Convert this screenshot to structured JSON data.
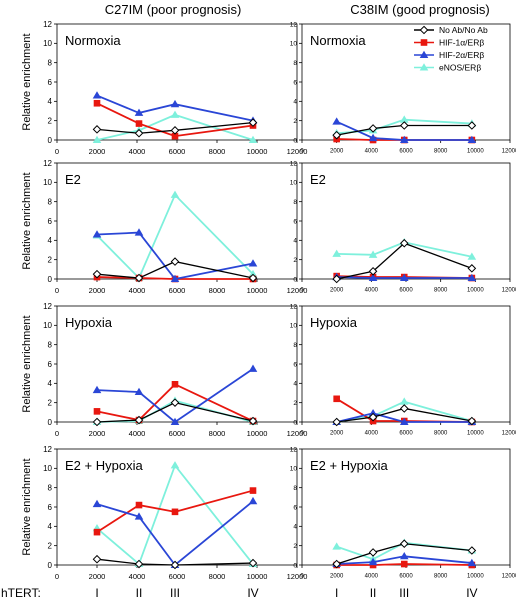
{
  "figure": {
    "column_titles": [
      "C27IM (poor prognosis)",
      "C38IM (good prognosis)"
    ],
    "row_ylabel": "Relative enrichment",
    "hTERT_label": "hTERT:",
    "hTERT_positions": [
      {
        "label": "I",
        "x": 2000
      },
      {
        "label": "II",
        "x": 4100
      },
      {
        "label": "III",
        "x": 5900
      },
      {
        "label": "IV",
        "x": 9800
      }
    ]
  },
  "legend": {
    "placement": "top-right of right Normoxia panel",
    "entries": [
      "No Ab/No Ab",
      "HIF-1α/ERβ",
      "HIF-2α/ERβ",
      "eNOS/ERβ"
    ]
  },
  "series_styles": [
    {
      "name": "No Ab/No Ab",
      "color": "#000000",
      "marker": "diamond-open"
    },
    {
      "name": "HIF-1α/ERβ",
      "color": "#e8170f",
      "marker": "square"
    },
    {
      "name": "HIF-2α/ERβ",
      "color": "#2a46d6",
      "marker": "triangle"
    },
    {
      "name": "eNOS/ERβ",
      "color": "#7ef0dc",
      "marker": "triangle"
    }
  ],
  "chart_data": [
    {
      "type": "line",
      "title": "Normoxia",
      "column": "C27IM (poor prognosis)",
      "xlim": [
        0,
        12000
      ],
      "ylim": [
        0,
        12
      ],
      "xticks": [
        0,
        2000,
        4000,
        6000,
        8000,
        10000,
        12000
      ],
      "yticks": [
        0,
        2,
        4,
        6,
        8,
        10,
        12
      ],
      "ylabel": "Relative enrichment",
      "series": [
        {
          "name": "No Ab/No Ab",
          "points": [
            [
              2000,
              1.1
            ],
            [
              4100,
              0.7
            ],
            [
              5900,
              1.0
            ],
            [
              9800,
              1.8
            ]
          ]
        },
        {
          "name": "HIF-1α/ERβ",
          "points": [
            [
              2000,
              3.8
            ],
            [
              4100,
              1.7
            ],
            [
              5900,
              0.4
            ],
            [
              9800,
              1.5
            ]
          ]
        },
        {
          "name": "HIF-2α/ERβ",
          "points": [
            [
              2000,
              4.6
            ],
            [
              4100,
              2.8
            ],
            [
              5900,
              3.7
            ],
            [
              9800,
              2.0
            ]
          ]
        },
        {
          "name": "eNOS/ERβ",
          "points": [
            [
              2000,
              0.0
            ],
            [
              4100,
              1.0
            ],
            [
              5900,
              2.6
            ],
            [
              9800,
              0.0
            ]
          ]
        }
      ]
    },
    {
      "type": "line",
      "title": "Normoxia",
      "column": "C38IM (good prognosis)",
      "xlim": [
        0,
        12000
      ],
      "ylim": [
        0,
        12
      ],
      "xticks": [
        0,
        2000,
        4000,
        6000,
        8000,
        10000,
        12000
      ],
      "yticks": [
        0,
        2,
        4,
        6,
        8,
        10,
        12
      ],
      "ylabel": "",
      "series": [
        {
          "name": "No Ab/No Ab",
          "points": [
            [
              2000,
              0.5
            ],
            [
              4100,
              1.2
            ],
            [
              5900,
              1.5
            ],
            [
              9800,
              1.5
            ]
          ]
        },
        {
          "name": "HIF-1α/ERβ",
          "points": [
            [
              2000,
              0.1
            ],
            [
              4100,
              0.0
            ],
            [
              5900,
              0.0
            ],
            [
              9800,
              0.0
            ]
          ]
        },
        {
          "name": "HIF-2α/ERβ",
          "points": [
            [
              2000,
              1.9
            ],
            [
              4100,
              0.2
            ],
            [
              5900,
              0.0
            ],
            [
              9800,
              0.0
            ]
          ]
        },
        {
          "name": "eNOS/ERβ",
          "points": [
            [
              2000,
              0.7
            ],
            [
              4100,
              1.0
            ],
            [
              5900,
              2.1
            ],
            [
              9800,
              1.7
            ]
          ]
        }
      ]
    },
    {
      "type": "line",
      "title": "E2",
      "column": "C27IM (poor prognosis)",
      "xlim": [
        0,
        12000
      ],
      "ylim": [
        0,
        12
      ],
      "xticks": [
        0,
        2000,
        4000,
        6000,
        8000,
        10000,
        12000
      ],
      "yticks": [
        0,
        2,
        4,
        6,
        8,
        10,
        12
      ],
      "ylabel": "Relative enrichment",
      "series": [
        {
          "name": "No Ab/No Ab",
          "points": [
            [
              2000,
              0.5
            ],
            [
              4100,
              0.1
            ],
            [
              5900,
              1.8
            ],
            [
              9800,
              0.1
            ]
          ]
        },
        {
          "name": "HIF-1α/ERβ",
          "points": [
            [
              2000,
              0.2
            ],
            [
              4100,
              0.1
            ],
            [
              5900,
              0.0
            ],
            [
              9800,
              0.0
            ]
          ]
        },
        {
          "name": "HIF-2α/ERβ",
          "points": [
            [
              2000,
              4.6
            ],
            [
              4100,
              4.8
            ],
            [
              5900,
              0.0
            ],
            [
              9800,
              1.6
            ]
          ]
        },
        {
          "name": "eNOS/ERβ",
          "points": [
            [
              2000,
              4.5
            ],
            [
              4100,
              0.1
            ],
            [
              5900,
              8.7
            ],
            [
              9800,
              0.5
            ]
          ]
        }
      ]
    },
    {
      "type": "line",
      "title": "E2",
      "column": "C38IM (good prognosis)",
      "xlim": [
        0,
        12000
      ],
      "ylim": [
        0,
        12
      ],
      "xticks": [
        0,
        2000,
        4000,
        6000,
        8000,
        10000,
        12000
      ],
      "yticks": [
        0,
        2,
        4,
        6,
        8,
        10,
        12
      ],
      "ylabel": "",
      "series": [
        {
          "name": "No Ab/No Ab",
          "points": [
            [
              2000,
              0.0
            ],
            [
              4100,
              0.8
            ],
            [
              5900,
              3.7
            ],
            [
              9800,
              1.1
            ]
          ]
        },
        {
          "name": "HIF-1α/ERβ",
          "points": [
            [
              2000,
              0.3
            ],
            [
              4100,
              0.2
            ],
            [
              5900,
              0.2
            ],
            [
              9800,
              0.1
            ]
          ]
        },
        {
          "name": "HIF-2α/ERβ",
          "points": [
            [
              2000,
              0.2
            ],
            [
              4100,
              0.1
            ],
            [
              5900,
              0.1
            ],
            [
              9800,
              0.1
            ]
          ]
        },
        {
          "name": "eNOS/ERβ",
          "points": [
            [
              2000,
              2.6
            ],
            [
              4100,
              2.5
            ],
            [
              5900,
              3.8
            ],
            [
              9800,
              2.3
            ]
          ]
        }
      ]
    },
    {
      "type": "line",
      "title": "Hypoxia",
      "column": "C27IM (poor prognosis)",
      "xlim": [
        0,
        12000
      ],
      "ylim": [
        0,
        12
      ],
      "xticks": [
        0,
        2000,
        4000,
        6000,
        8000,
        10000,
        12000
      ],
      "yticks": [
        0,
        2,
        4,
        6,
        8,
        10,
        12
      ],
      "ylabel": "Relative enrichment",
      "series": [
        {
          "name": "No Ab/No Ab",
          "points": [
            [
              2000,
              0.0
            ],
            [
              4100,
              0.2
            ],
            [
              5900,
              2.0
            ],
            [
              9800,
              0.1
            ]
          ]
        },
        {
          "name": "HIF-1α/ERβ",
          "points": [
            [
              2000,
              1.1
            ],
            [
              4100,
              0.2
            ],
            [
              5900,
              3.9
            ],
            [
              9800,
              0.1
            ]
          ]
        },
        {
          "name": "HIF-2α/ERβ",
          "points": [
            [
              2000,
              3.3
            ],
            [
              4100,
              3.1
            ],
            [
              5900,
              0.0
            ],
            [
              9800,
              5.5
            ]
          ]
        },
        {
          "name": "eNOS/ERβ",
          "points": [
            [
              2000,
              0.0
            ],
            [
              4100,
              0.1
            ],
            [
              5900,
              2.2
            ],
            [
              9800,
              0.0
            ]
          ]
        }
      ]
    },
    {
      "type": "line",
      "title": "Hypoxia",
      "column": "C38IM (good prognosis)",
      "xlim": [
        0,
        12000
      ],
      "ylim": [
        0,
        12
      ],
      "xticks": [
        0,
        2000,
        4000,
        6000,
        8000,
        10000,
        12000
      ],
      "yticks": [
        0,
        2,
        4,
        6,
        8,
        10,
        12
      ],
      "ylabel": "",
      "series": [
        {
          "name": "No Ab/No Ab",
          "points": [
            [
              2000,
              0.0
            ],
            [
              4100,
              0.5
            ],
            [
              5900,
              1.4
            ],
            [
              9800,
              0.1
            ]
          ]
        },
        {
          "name": "HIF-1α/ERβ",
          "points": [
            [
              2000,
              2.4
            ],
            [
              4100,
              0.1
            ],
            [
              5900,
              0.1
            ],
            [
              9800,
              0.0
            ]
          ]
        },
        {
          "name": "HIF-2α/ERβ",
          "points": [
            [
              2000,
              0.0
            ],
            [
              4100,
              0.9
            ],
            [
              5900,
              0.0
            ],
            [
              9800,
              0.0
            ]
          ]
        },
        {
          "name": "eNOS/ERβ",
          "points": [
            [
              2000,
              0.0
            ],
            [
              4100,
              0.6
            ],
            [
              5900,
              2.1
            ],
            [
              9800,
              0.1
            ]
          ]
        }
      ]
    },
    {
      "type": "line",
      "title": "E2 + Hypoxia",
      "column": "C27IM (poor prognosis)",
      "xlim": [
        0,
        12000
      ],
      "ylim": [
        0,
        12
      ],
      "xticks": [
        0,
        2000,
        4000,
        6000,
        8000,
        10000,
        12000
      ],
      "yticks": [
        0,
        2,
        4,
        6,
        8,
        10,
        12
      ],
      "ylabel": "Relative enrichment",
      "series": [
        {
          "name": "No Ab/No Ab",
          "points": [
            [
              2000,
              0.6
            ],
            [
              4100,
              0.1
            ],
            [
              5900,
              0.0
            ],
            [
              9800,
              0.2
            ]
          ]
        },
        {
          "name": "HIF-1α/ERβ",
          "points": [
            [
              2000,
              3.4
            ],
            [
              4100,
              6.2
            ],
            [
              5900,
              5.5
            ],
            [
              9800,
              7.7
            ]
          ]
        },
        {
          "name": "HIF-2α/ERβ",
          "points": [
            [
              2000,
              6.3
            ],
            [
              4100,
              5.0
            ],
            [
              5900,
              0.0
            ],
            [
              9800,
              6.6
            ]
          ]
        },
        {
          "name": "eNOS/ERβ",
          "points": [
            [
              2000,
              3.8
            ],
            [
              4100,
              0.1
            ],
            [
              5900,
              10.3
            ],
            [
              9800,
              0.1
            ]
          ]
        }
      ]
    },
    {
      "type": "line",
      "title": "E2 + Hypoxia",
      "column": "C38IM (good prognosis)",
      "xlim": [
        0,
        12000
      ],
      "ylim": [
        0,
        12
      ],
      "xticks": [
        0,
        2000,
        4000,
        6000,
        8000,
        10000,
        12000
      ],
      "yticks": [
        0,
        2,
        4,
        6,
        8,
        10,
        12
      ],
      "ylabel": "",
      "series": [
        {
          "name": "No Ab/No Ab",
          "points": [
            [
              2000,
              0.1
            ],
            [
              4100,
              1.3
            ],
            [
              5900,
              2.2
            ],
            [
              9800,
              1.5
            ]
          ]
        },
        {
          "name": "HIF-1α/ERβ",
          "points": [
            [
              2000,
              0.0
            ],
            [
              4100,
              0.0
            ],
            [
              5900,
              0.1
            ],
            [
              9800,
              0.0
            ]
          ]
        },
        {
          "name": "HIF-2α/ERβ",
          "points": [
            [
              2000,
              0.1
            ],
            [
              4100,
              0.3
            ],
            [
              5900,
              0.9
            ],
            [
              9800,
              0.2
            ]
          ]
        },
        {
          "name": "eNOS/ERβ",
          "points": [
            [
              2000,
              1.9
            ],
            [
              4100,
              0.6
            ],
            [
              5900,
              2.3
            ],
            [
              9800,
              1.5
            ]
          ]
        }
      ]
    }
  ]
}
